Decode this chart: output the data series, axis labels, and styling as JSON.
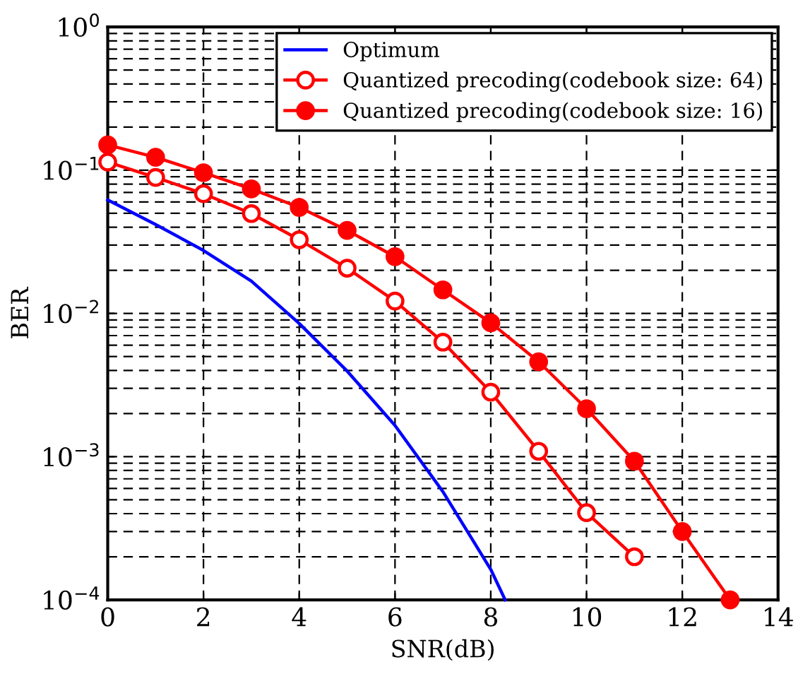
{
  "chart_data": {
    "type": "line",
    "xlabel": "SNR(dB)",
    "ylabel": "BER",
    "log": "y",
    "xlim": [
      0,
      14
    ],
    "xticks": [
      0,
      2,
      4,
      6,
      8,
      10,
      12,
      14
    ],
    "ylim": [
      0.0001,
      1
    ],
    "yticks": [
      {
        "value": 0.0001,
        "label": "10$^{−4}$"
      },
      {
        "value": 0.001,
        "label": "10$^{−3}$"
      },
      {
        "value": 0.01,
        "label": "10$^{−2}$"
      },
      {
        "value": 0.1,
        "label": "10$^{−1}$"
      },
      {
        "value": 1,
        "label": "10$^{0}$"
      }
    ],
    "grid": true,
    "legend": "top right",
    "series": [
      {
        "name": "Optimum",
        "color": "#0000ff",
        "marker": "none",
        "x": [
          0,
          1,
          2,
          3,
          4,
          5,
          6,
          7,
          8,
          8.3
        ],
        "values": [
          0.062,
          0.0418,
          0.0275,
          0.0168,
          0.0085,
          0.00396,
          0.00165,
          0.00057,
          0.000163,
          0.0001
        ]
      },
      {
        "name": "Quantized precoding(codebook size: 64)",
        "color": "#ff0000",
        "marker": "open circle",
        "x": [
          0,
          1,
          2,
          3,
          4,
          5,
          6,
          7,
          8,
          9,
          10,
          11
        ],
        "values": [
          0.114,
          0.089,
          0.0685,
          0.0498,
          0.0327,
          0.0207,
          0.0122,
          0.0063,
          0.00282,
          0.00109,
          0.000406,
          0.0002
        ]
      },
      {
        "name": "Quantized precoding(codebook size: 16)",
        "color": "#ff0000",
        "marker": "circle",
        "x": [
          0,
          1,
          2,
          3,
          4,
          5,
          6,
          7,
          8,
          9,
          10,
          11,
          12,
          13
        ],
        "values": [
          0.15,
          0.123,
          0.096,
          0.074,
          0.055,
          0.038,
          0.0249,
          0.0146,
          0.0086,
          0.0046,
          0.00216,
          0.00093,
          0.0003,
          0.0001
        ]
      }
    ]
  }
}
